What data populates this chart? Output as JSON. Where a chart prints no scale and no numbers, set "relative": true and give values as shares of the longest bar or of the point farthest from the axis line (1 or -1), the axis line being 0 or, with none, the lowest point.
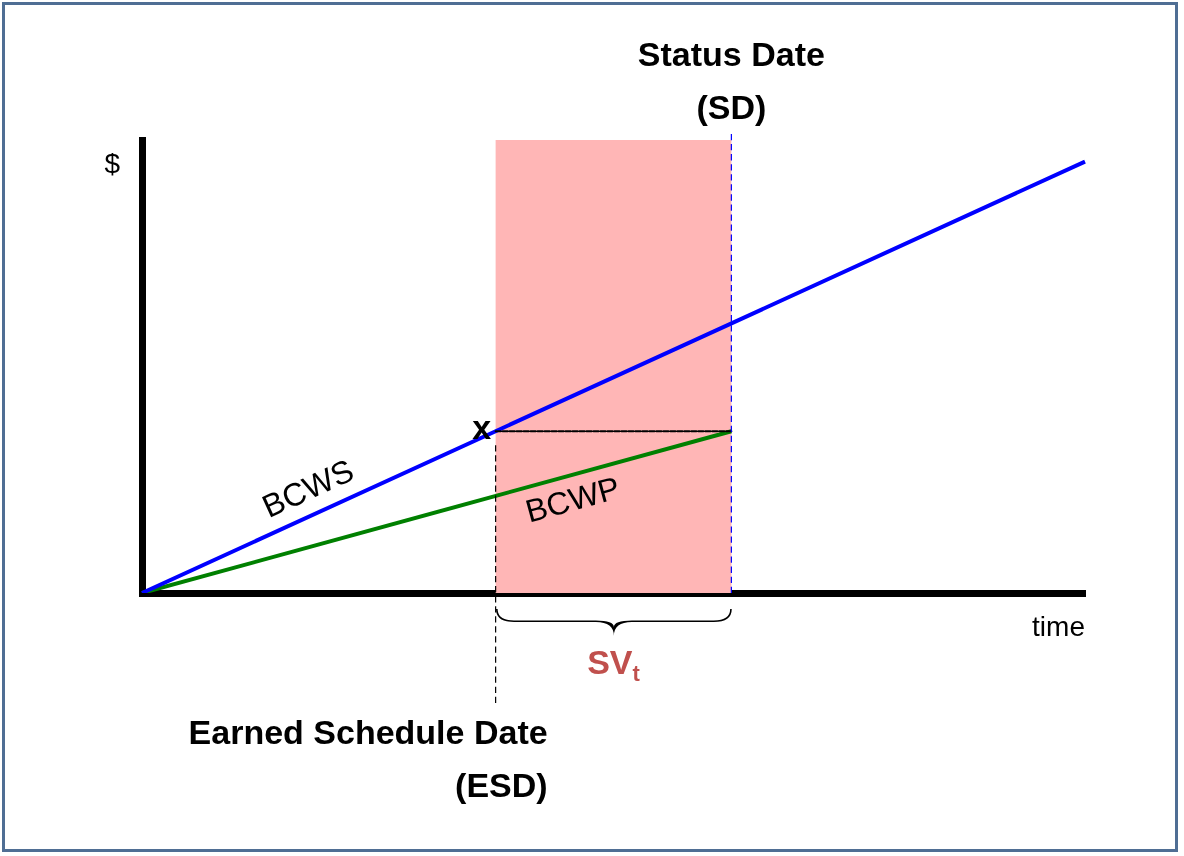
{
  "chart_data": {
    "type": "line",
    "relative": true,
    "xlabel": "time",
    "ylabel": "$",
    "legend": false,
    "grid": false,
    "categories": [
      null,
      null,
      null,
      null,
      null,
      null,
      null,
      null,
      null
    ],
    "series": [
      {
        "name": "BCWS",
        "color": "#0000ff",
        "values": [
          0,
          null,
          null,
          0.375,
          null,
          null,
          null,
          null,
          1
        ]
      },
      {
        "name": "BCWP",
        "color": "#008000",
        "values": [
          0,
          null,
          null,
          null,
          null,
          0.375,
          null,
          null,
          null
        ]
      },
      {
        "color": "#000000",
        "line_style": "dashed",
        "values": [
          null,
          null,
          null,
          0.375,
          null,
          0.375,
          null,
          null,
          null
        ]
      }
    ],
    "annotations": [
      "Status Date (SD)",
      "Earned Schedule Date (ESD)",
      "SV$_{t}$",
      {
        "text": "x",
        "y": 0.375
      }
    ]
  }
}
